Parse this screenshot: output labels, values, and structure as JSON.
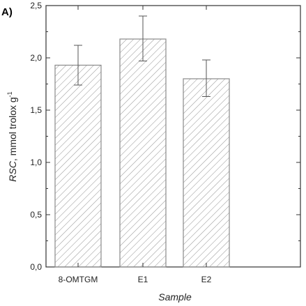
{
  "chart_data": {
    "type": "bar",
    "panel_label": "A)",
    "categories": [
      "8-OMTGM",
      "E1",
      "E2"
    ],
    "values": [
      1.93,
      2.18,
      1.8
    ],
    "error_low": [
      1.74,
      1.97,
      1.63
    ],
    "error_high": [
      2.12,
      2.4,
      1.98
    ],
    "xlabel": "Sample",
    "ylabel_main": "RSC",
    "ylabel_rest": ", mmol trolox g",
    "ylabel_sup": "-1",
    "ylim": [
      0,
      2.5
    ],
    "yticks": [
      0,
      0.5,
      1.0,
      1.5,
      2.0,
      2.5
    ],
    "ytick_labels": [
      "0,0",
      "0,5",
      "1,0",
      "1,5",
      "2,0",
      "2,5"
    ],
    "bar_fill": "hatched",
    "grid": false
  },
  "colors": {
    "axis": "#333333",
    "bar_edge": "#8a8a8a",
    "hatch": "#9a9a9a",
    "error_bar": "#555555"
  }
}
